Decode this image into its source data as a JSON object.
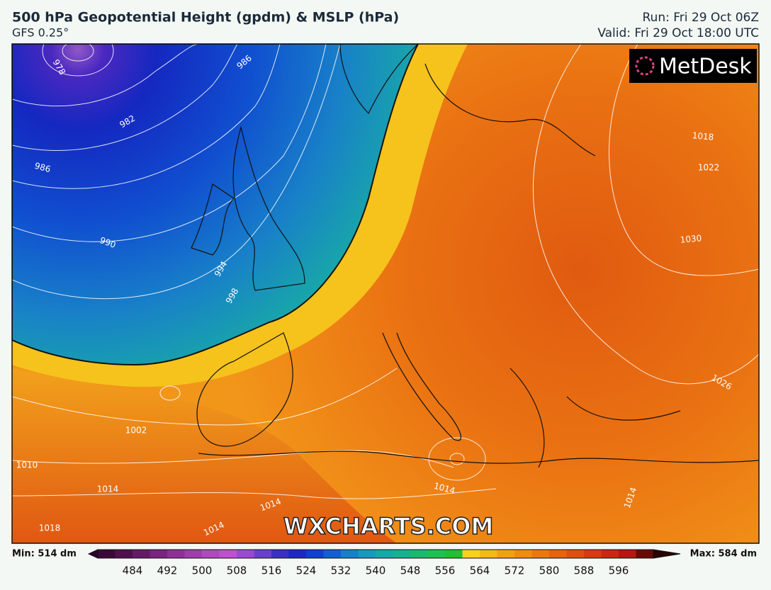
{
  "header": {
    "title": "500 hPa Geopotential Height (gpdm) & MSLP (hPa)",
    "model": "GFS 0.25°",
    "run": "Run: Fri 29 Oct 06Z",
    "valid": "Valid: Fri 29 Oct 18:00 UTC"
  },
  "map": {
    "logo": "MetDesk",
    "watermark": "WXCHARTS.COM",
    "isobar_labels": [
      "978",
      "986",
      "982",
      "986",
      "990",
      "994",
      "998",
      "1002",
      "1010",
      "1014",
      "1018",
      "1014",
      "1014",
      "1014",
      "1014",
      "1018",
      "1022",
      "1030",
      "1026"
    ]
  },
  "colorbar": {
    "min_label": "Min: 514 dm",
    "max_label": "Max: 584 dm",
    "ticks": [
      484,
      492,
      500,
      508,
      516,
      524,
      532,
      540,
      548,
      556,
      564,
      572,
      580,
      588,
      596
    ]
  }
}
